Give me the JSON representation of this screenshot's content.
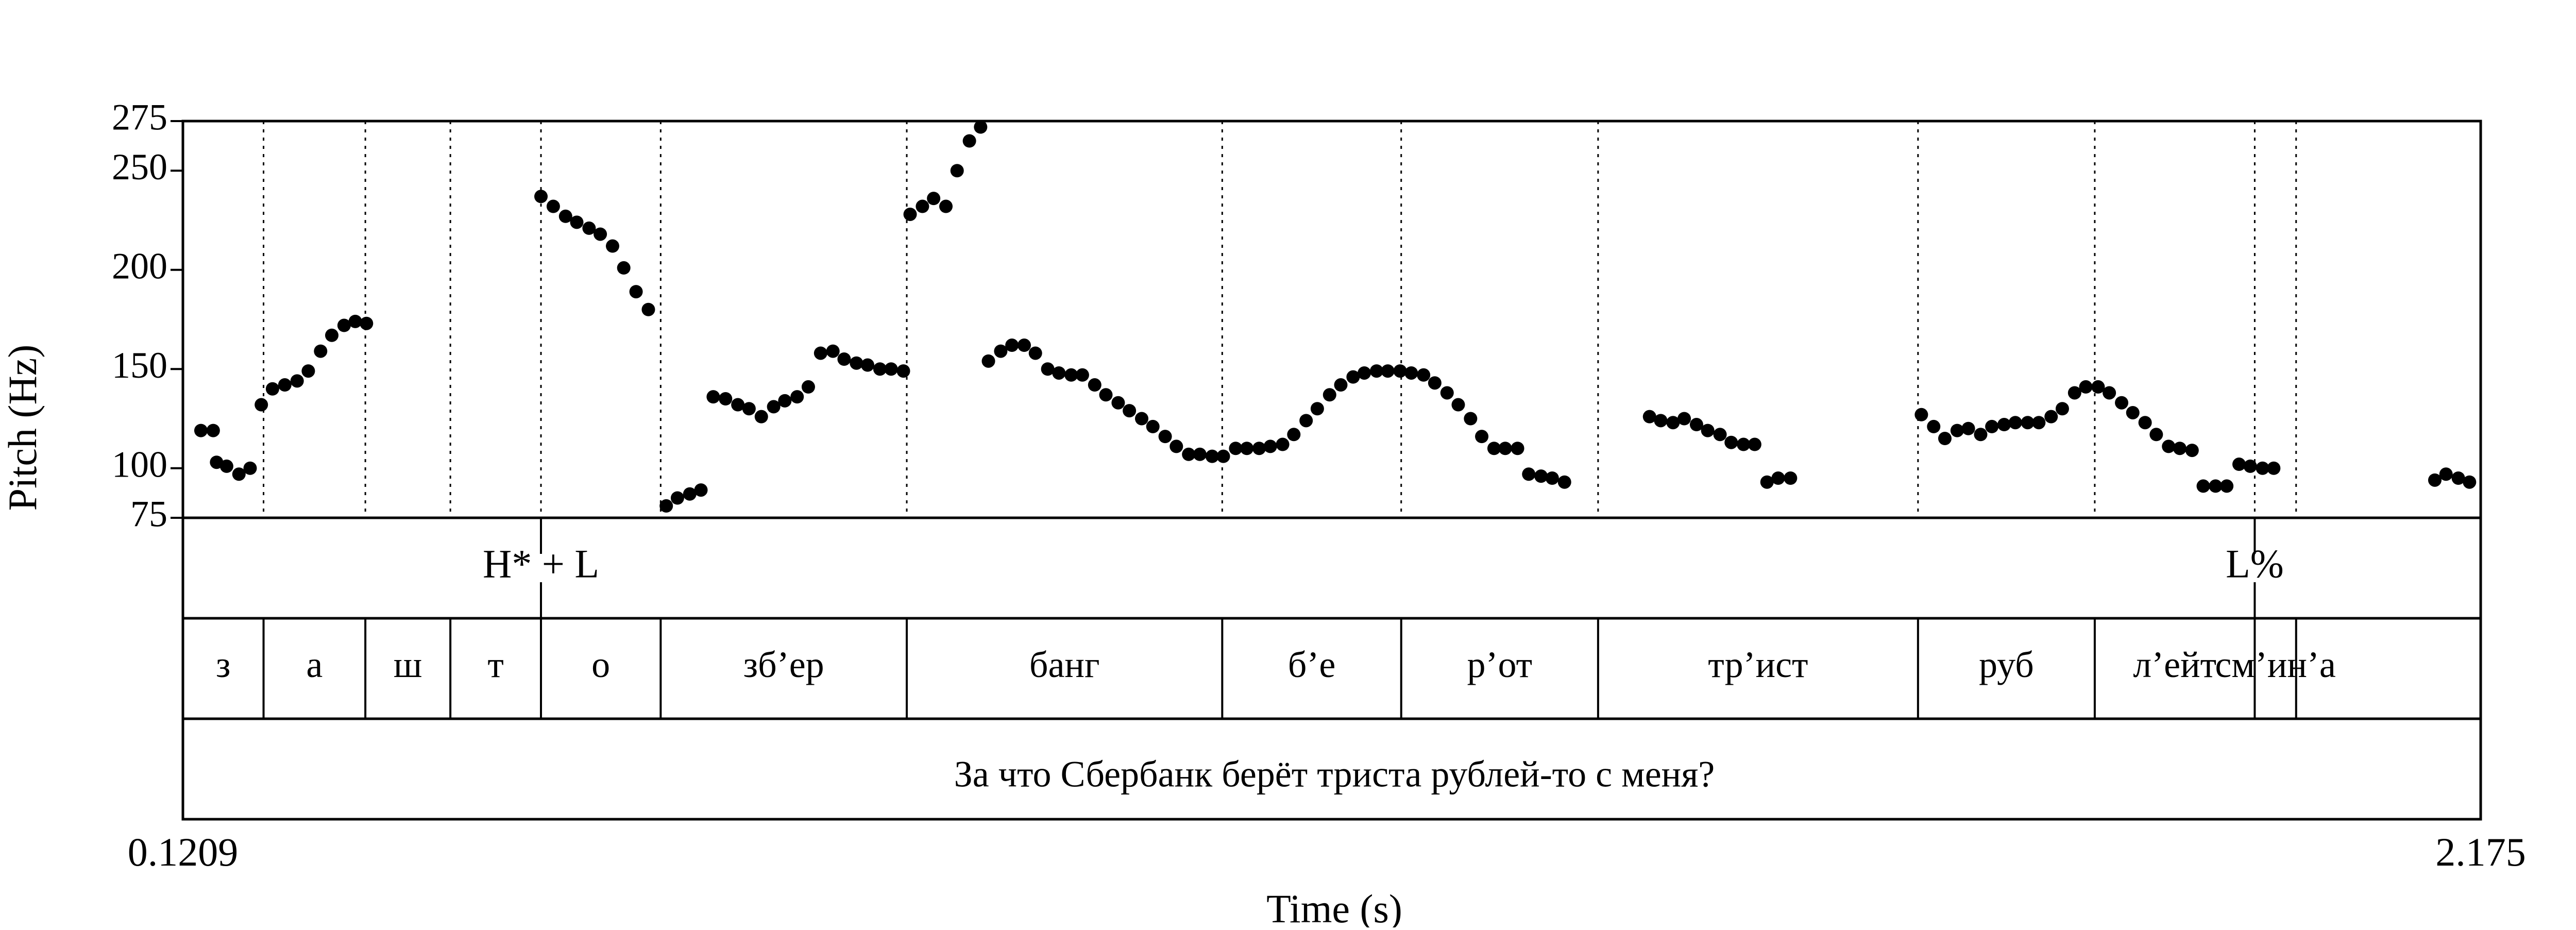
{
  "chart_data": {
    "type": "scatter",
    "title": "",
    "xlabel": "Time (s)",
    "ylabel": "Pitch (Hz)",
    "xlim": [
      0.1209,
      2.175
    ],
    "ylim": [
      75,
      275
    ],
    "x_tick_labels": [
      "0.1209",
      "2.175"
    ],
    "y_ticks": [
      75,
      100,
      150,
      200,
      250,
      275
    ],
    "grid": false,
    "legend": "none",
    "boundaries": [
      0.193,
      0.284,
      0.36,
      0.441,
      0.548,
      0.768,
      1.05,
      1.21,
      1.386,
      1.672,
      1.83,
      1.973,
      2.01
    ],
    "tones": {
      "label": "H* + L",
      "h_star_l_time": 0.441,
      "final_label": "L%",
      "final_time": 1.973
    },
    "syllables": [
      "з",
      "а",
      "ш",
      "т",
      "о",
      "зб’ер",
      "банг",
      "б’е",
      "р’от",
      "тр’ист",
      "руб",
      "л’ейт",
      "см’ин’а"
    ],
    "sentence": "За что Сбербанк берёт триста рублей-то с меня?",
    "series": [
      {
        "points": [
          [
            0.137,
            119
          ],
          [
            0.148,
            119
          ],
          [
            0.151,
            103
          ],
          [
            0.16,
            101
          ],
          [
            0.171,
            97
          ],
          [
            0.181,
            100
          ],
          [
            0.191,
            132
          ],
          [
            0.201,
            140
          ],
          [
            0.212,
            142
          ],
          [
            0.223,
            144
          ],
          [
            0.233,
            149
          ],
          [
            0.244,
            159
          ],
          [
            0.254,
            167
          ],
          [
            0.265,
            172
          ],
          [
            0.275,
            174
          ],
          [
            0.285,
            173
          ],
          [
            0.441,
            237
          ],
          [
            0.452,
            232
          ],
          [
            0.463,
            227
          ],
          [
            0.473,
            224
          ],
          [
            0.484,
            221
          ],
          [
            0.494,
            218
          ],
          [
            0.505,
            212
          ],
          [
            0.515,
            201
          ],
          [
            0.526,
            189
          ],
          [
            0.537,
            180
          ],
          [
            0.553,
            81
          ],
          [
            0.563,
            85
          ],
          [
            0.574,
            87
          ],
          [
            0.584,
            89
          ],
          [
            0.595,
            136
          ],
          [
            0.606,
            135
          ],
          [
            0.617,
            132
          ],
          [
            0.627,
            130
          ],
          [
            0.638,
            126
          ],
          [
            0.649,
            131
          ],
          [
            0.659,
            134
          ],
          [
            0.67,
            136
          ],
          [
            0.68,
            141
          ],
          [
            0.691,
            158
          ],
          [
            0.702,
            159
          ],
          [
            0.712,
            155
          ],
          [
            0.723,
            153
          ],
          [
            0.733,
            152
          ],
          [
            0.744,
            150
          ],
          [
            0.754,
            150
          ],
          [
            0.765,
            149
          ],
          [
            0.771,
            228
          ],
          [
            0.782,
            232
          ],
          [
            0.792,
            236
          ],
          [
            0.803,
            232
          ],
          [
            0.813,
            250
          ],
          [
            0.824,
            265
          ],
          [
            0.834,
            272
          ],
          [
            0.841,
            154
          ],
          [
            0.852,
            159
          ],
          [
            0.862,
            162
          ],
          [
            0.873,
            162
          ],
          [
            0.883,
            158
          ],
          [
            0.894,
            150
          ],
          [
            0.904,
            148
          ],
          [
            0.915,
            147
          ],
          [
            0.925,
            147
          ],
          [
            0.936,
            142
          ],
          [
            0.946,
            137
          ],
          [
            0.957,
            133
          ],
          [
            0.967,
            129
          ],
          [
            0.978,
            125
          ],
          [
            0.988,
            121
          ],
          [
            0.999,
            116
          ],
          [
            1.009,
            111
          ],
          [
            1.02,
            107
          ],
          [
            1.03,
            107
          ],
          [
            1.041,
            106
          ],
          [
            1.051,
            106
          ],
          [
            1.062,
            110
          ],
          [
            1.072,
            110
          ],
          [
            1.083,
            110
          ],
          [
            1.093,
            111
          ],
          [
            1.104,
            112
          ],
          [
            1.114,
            117
          ],
          [
            1.125,
            124
          ],
          [
            1.135,
            130
          ],
          [
            1.146,
            137
          ],
          [
            1.156,
            142
          ],
          [
            1.167,
            146
          ],
          [
            1.177,
            148
          ],
          [
            1.188,
            149
          ],
          [
            1.198,
            149
          ],
          [
            1.209,
            149
          ],
          [
            1.219,
            148
          ],
          [
            1.23,
            147
          ],
          [
            1.24,
            143
          ],
          [
            1.251,
            138
          ],
          [
            1.261,
            132
          ],
          [
            1.272,
            125
          ],
          [
            1.282,
            116
          ],
          [
            1.293,
            110
          ],
          [
            1.303,
            110
          ],
          [
            1.314,
            110
          ],
          [
            1.324,
            97
          ],
          [
            1.335,
            96
          ],
          [
            1.345,
            95
          ],
          [
            1.356,
            93
          ],
          [
            1.432,
            126
          ],
          [
            1.442,
            124
          ],
          [
            1.453,
            123
          ],
          [
            1.463,
            125
          ],
          [
            1.474,
            122
          ],
          [
            1.484,
            119
          ],
          [
            1.495,
            117
          ],
          [
            1.505,
            113
          ],
          [
            1.516,
            112
          ],
          [
            1.526,
            112
          ],
          [
            1.537,
            93
          ],
          [
            1.547,
            95
          ],
          [
            1.558,
            95
          ],
          [
            1.675,
            127
          ],
          [
            1.686,
            121
          ],
          [
            1.696,
            115
          ],
          [
            1.707,
            119
          ],
          [
            1.717,
            120
          ],
          [
            1.728,
            117
          ],
          [
            1.738,
            121
          ],
          [
            1.749,
            122
          ],
          [
            1.759,
            123
          ],
          [
            1.77,
            123
          ],
          [
            1.78,
            123
          ],
          [
            1.791,
            126
          ],
          [
            1.801,
            130
          ],
          [
            1.812,
            138
          ],
          [
            1.822,
            141
          ],
          [
            1.833,
            141
          ],
          [
            1.843,
            138
          ],
          [
            1.854,
            133
          ],
          [
            1.864,
            128
          ],
          [
            1.875,
            123
          ],
          [
            1.885,
            117
          ],
          [
            1.896,
            111
          ],
          [
            1.906,
            110
          ],
          [
            1.917,
            109
          ],
          [
            1.927,
            91
          ],
          [
            1.938,
            91
          ],
          [
            1.948,
            91
          ],
          [
            1.959,
            102
          ],
          [
            1.969,
            101
          ],
          [
            1.98,
            100
          ],
          [
            1.99,
            100
          ],
          [
            2.134,
            94
          ],
          [
            2.144,
            97
          ],
          [
            2.155,
            95
          ],
          [
            2.165,
            93
          ]
        ]
      }
    ]
  }
}
